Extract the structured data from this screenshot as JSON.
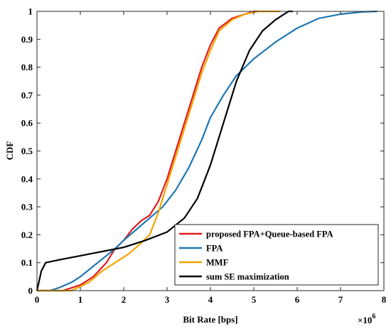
{
  "chart_data": {
    "type": "line",
    "xlabel": "Bit Rate [bps]",
    "ylabel": "CDF",
    "x_exponent_base": "×10",
    "x_exponent_power": "6",
    "xlim": [
      0,
      8
    ],
    "ylim": [
      0,
      1
    ],
    "x_ticks": [
      "0",
      "1",
      "2",
      "3",
      "4",
      "5",
      "6",
      "7",
      "8"
    ],
    "y_ticks": [
      "0",
      "0.1",
      "0.2",
      "0.3",
      "0.4",
      "0.5",
      "0.6",
      "0.7",
      "0.8",
      "0.9",
      "1"
    ],
    "x_unit_multiplier": 1000000,
    "grid": false,
    "legend_position": "bottom-right",
    "series": [
      {
        "name": "proposed FPA+Queue-based FPA",
        "color": "#e31a1c",
        "points": [
          [
            0.0,
            0.0
          ],
          [
            0.6,
            0.0
          ],
          [
            1.0,
            0.02
          ],
          [
            1.3,
            0.05
          ],
          [
            1.6,
            0.1
          ],
          [
            1.8,
            0.15
          ],
          [
            2.0,
            0.18
          ],
          [
            2.2,
            0.22
          ],
          [
            2.4,
            0.25
          ],
          [
            2.6,
            0.27
          ],
          [
            2.8,
            0.32
          ],
          [
            3.0,
            0.4
          ],
          [
            3.2,
            0.5
          ],
          [
            3.4,
            0.6
          ],
          [
            3.6,
            0.7
          ],
          [
            3.8,
            0.8
          ],
          [
            4.0,
            0.88
          ],
          [
            4.2,
            0.94
          ],
          [
            4.5,
            0.975
          ],
          [
            4.8,
            0.99
          ],
          [
            5.0,
            1.0
          ],
          [
            5.1,
            1.0
          ]
        ]
      },
      {
        "name": "FPA",
        "color": "#1f77b4",
        "points": [
          [
            0.0,
            0.0
          ],
          [
            0.3,
            0.0
          ],
          [
            0.5,
            0.01
          ],
          [
            0.8,
            0.03
          ],
          [
            1.0,
            0.05
          ],
          [
            1.4,
            0.1
          ],
          [
            1.8,
            0.15
          ],
          [
            2.0,
            0.18
          ],
          [
            2.3,
            0.22
          ],
          [
            2.6,
            0.26
          ],
          [
            2.9,
            0.3
          ],
          [
            3.2,
            0.36
          ],
          [
            3.5,
            0.44
          ],
          [
            3.8,
            0.54
          ],
          [
            4.0,
            0.62
          ],
          [
            4.3,
            0.7
          ],
          [
            4.6,
            0.77
          ],
          [
            5.0,
            0.83
          ],
          [
            5.5,
            0.89
          ],
          [
            6.0,
            0.94
          ],
          [
            6.5,
            0.975
          ],
          [
            7.0,
            0.99
          ],
          [
            7.5,
            0.998
          ],
          [
            7.85,
            1.0
          ]
        ]
      },
      {
        "name": "MMF",
        "color": "#f0a500",
        "points": [
          [
            0.0,
            0.0
          ],
          [
            0.8,
            0.0
          ],
          [
            1.2,
            0.03
          ],
          [
            1.5,
            0.07
          ],
          [
            1.8,
            0.1
          ],
          [
            2.1,
            0.13
          ],
          [
            2.4,
            0.17
          ],
          [
            2.6,
            0.2
          ],
          [
            2.8,
            0.28
          ],
          [
            3.0,
            0.38
          ],
          [
            3.2,
            0.48
          ],
          [
            3.4,
            0.58
          ],
          [
            3.6,
            0.68
          ],
          [
            3.8,
            0.78
          ],
          [
            4.0,
            0.86
          ],
          [
            4.2,
            0.93
          ],
          [
            4.5,
            0.97
          ],
          [
            4.8,
            0.99
          ],
          [
            5.1,
            1.0
          ],
          [
            5.6,
            1.0
          ]
        ]
      },
      {
        "name": "sum SE maximization",
        "color": "#000000",
        "points": [
          [
            0.0,
            0.0
          ],
          [
            0.1,
            0.07
          ],
          [
            0.2,
            0.1
          ],
          [
            0.5,
            0.11
          ],
          [
            1.0,
            0.125
          ],
          [
            1.5,
            0.14
          ],
          [
            2.0,
            0.155
          ],
          [
            2.5,
            0.18
          ],
          [
            3.0,
            0.21
          ],
          [
            3.4,
            0.26
          ],
          [
            3.7,
            0.33
          ],
          [
            4.0,
            0.45
          ],
          [
            4.3,
            0.6
          ],
          [
            4.6,
            0.75
          ],
          [
            4.9,
            0.86
          ],
          [
            5.2,
            0.93
          ],
          [
            5.5,
            0.97
          ],
          [
            5.8,
            1.0
          ],
          [
            5.9,
            1.0
          ]
        ]
      }
    ]
  }
}
